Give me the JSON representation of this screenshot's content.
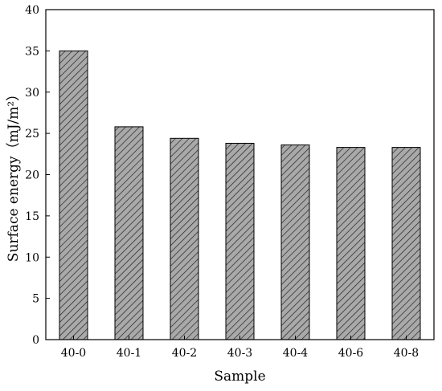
{
  "chart_data": {
    "type": "bar",
    "categories": [
      "40-0",
      "40-1",
      "40-2",
      "40-3",
      "40-4",
      "40-6",
      "40-8"
    ],
    "values": [
      35.0,
      25.8,
      24.4,
      23.8,
      23.6,
      23.3,
      23.3
    ],
    "xlabel": "Sample",
    "ylabel": "Surface energy（mJ/m²）",
    "ylim": [
      0,
      40
    ],
    "yticks": [
      0,
      5,
      10,
      15,
      20,
      25,
      30,
      35,
      40
    ],
    "grid": false,
    "bar_fill": "hatched",
    "colors": {
      "bar_face": "#a9a9a9",
      "hatch": "#222222",
      "axis": "#000000"
    }
  }
}
